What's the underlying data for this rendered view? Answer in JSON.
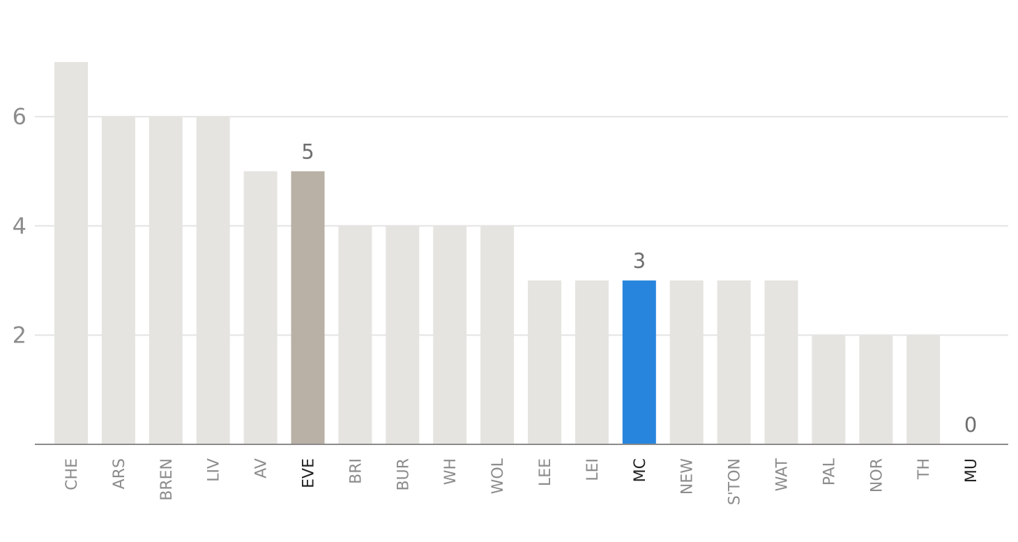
{
  "chart_data": {
    "type": "bar",
    "categories": [
      "CHE",
      "ARS",
      "BREN",
      "LIV",
      "AV",
      "EVE",
      "BRI",
      "BUR",
      "WH",
      "WOL",
      "LEE",
      "LEI",
      "MC",
      "NEW",
      "S'TON",
      "WAT",
      "PAL",
      "NOR",
      "TH",
      "MU"
    ],
    "values": [
      7,
      6,
      6,
      6,
      5,
      5,
      4,
      4,
      4,
      4,
      3,
      3,
      3,
      3,
      3,
      3,
      2,
      2,
      2,
      0
    ],
    "highlights": [
      {
        "category": "EVE",
        "color": "#b9b0a6",
        "label": "5"
      },
      {
        "category": "MC",
        "color": "#2785dd",
        "label": "3"
      },
      {
        "category": "MU",
        "color": "#e5e4e0",
        "label": "0"
      }
    ],
    "emphasized_categories": [
      "EVE",
      "MC",
      "MU"
    ],
    "default_color": "#e5e4e0",
    "yticks": [
      2,
      4,
      6
    ],
    "ylim": [
      0,
      7
    ],
    "grid": true,
    "title": "",
    "xlabel": "",
    "ylabel": ""
  }
}
